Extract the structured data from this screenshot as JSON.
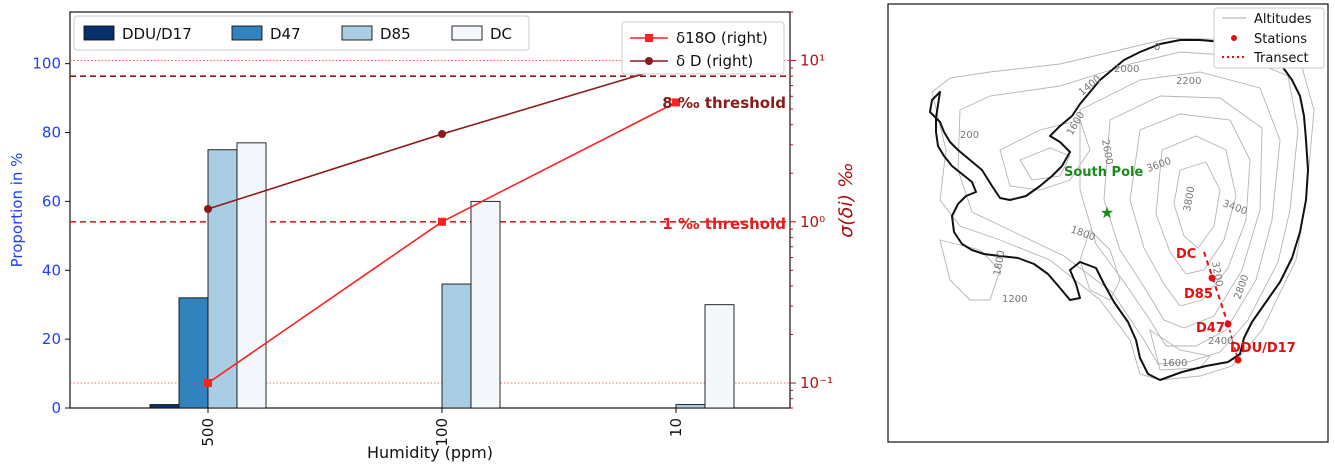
{
  "chart_data": [
    {
      "type": "bar",
      "categories": [
        "500",
        "100",
        "10"
      ],
      "xlabel": "Humidity (ppm)",
      "ylabel": "Proportion in %",
      "ylim": [
        0,
        115
      ],
      "yticks": [
        "0",
        "20",
        "40",
        "60",
        "80",
        "100"
      ],
      "series": [
        {
          "name": "DDU/D17",
          "color": "#08306b",
          "values": [
            1,
            0,
            0
          ]
        },
        {
          "name": "D47",
          "color": "#3182bd",
          "values": [
            32,
            0,
            0
          ]
        },
        {
          "name": "D85",
          "color": "#a9cde3",
          "values": [
            75,
            36,
            1
          ]
        },
        {
          "name": "DC",
          "color": "#f4f8fd",
          "values": [
            77,
            60,
            30
          ]
        }
      ],
      "secondary_axis": {
        "label": "σ(δi) ‰",
        "scale": "log",
        "range": [
          0.07,
          20
        ],
        "tick_labels": [
          "10⁻¹",
          "10⁰",
          "10¹"
        ],
        "lines": [
          {
            "name": "δ18O (right)",
            "color": "#ff2020",
            "marker": "square",
            "values": [
              0.1,
              1.0,
              5.5
            ]
          },
          {
            "name": "δ D (right)",
            "color": "#8b1a1a",
            "marker": "circle",
            "values": [
              1.2,
              3.5,
              9.5
            ]
          }
        ],
        "thresholds": [
          {
            "label": "8 ‰ threshold",
            "value": 8,
            "color": "#8b1a1a"
          },
          {
            "label": "1 ‰ threshold",
            "value": 1,
            "color": "#e02020"
          }
        ],
        "dotted_refs": [
          10,
          0.1
        ]
      }
    }
  ],
  "map": {
    "legend": {
      "altitudes": "Altitudes",
      "stations": "Stations",
      "transect": "Transect"
    },
    "contour_labels": [
      "0",
      "2000",
      "2200",
      "1400",
      "1600",
      "2600",
      "3600",
      "3400",
      "3800",
      "1800",
      "2800",
      "3200",
      "2400",
      "1600",
      "1200",
      "1800",
      "200"
    ],
    "south_pole_label": "South Pole",
    "stations": [
      "DC",
      "D85",
      "D47",
      "DDU/D17"
    ]
  }
}
